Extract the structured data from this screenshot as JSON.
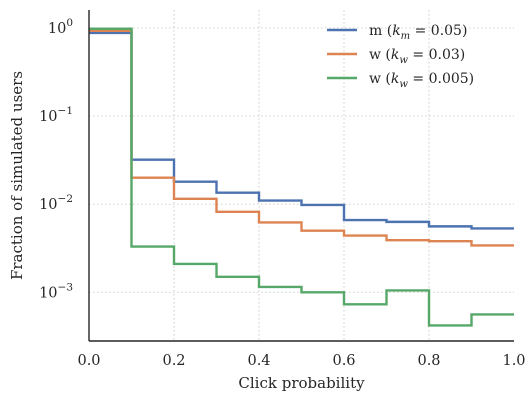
{
  "chart_data": {
    "type": "line",
    "step": "post",
    "xlabel": "Click probability",
    "ylabel": "Fraction of simulated users",
    "xlim": [
      0.0,
      1.0
    ],
    "ylim": [
      0.00028,
      1.6
    ],
    "yscale": "log",
    "grid": true,
    "legend_position": "top-right",
    "x_ticks": [
      0.0,
      0.2,
      0.4,
      0.6,
      0.8,
      1.0
    ],
    "x_tick_labels": [
      "0.0",
      "0.2",
      "0.4",
      "0.6",
      "0.8",
      "1.0"
    ],
    "y_ticks": [
      1,
      0.1,
      0.01,
      0.001
    ],
    "y_tick_labels": [
      {
        "base": "10",
        "exp": "0"
      },
      {
        "base": "10",
        "exp": "−1"
      },
      {
        "base": "10",
        "exp": "−2"
      },
      {
        "base": "10",
        "exp": "−3"
      }
    ],
    "bin_edges": [
      0.0,
      0.1,
      0.2,
      0.3,
      0.4,
      0.5,
      0.6,
      0.7,
      0.8,
      0.9,
      1.0
    ],
    "series": [
      {
        "name": "m (k_m = 0.05)",
        "legend": {
          "prefix": "m (",
          "italic": "k",
          "sub": "m",
          "suffix": " = 0.05)"
        },
        "color": "#4c72b0",
        "values": [
          0.88,
          0.032,
          0.018,
          0.0135,
          0.011,
          0.0098,
          0.0066,
          0.0063,
          0.0056,
          0.0053
        ]
      },
      {
        "name": "w (k_w = 0.03)",
        "legend": {
          "prefix": "w (",
          "italic": "k",
          "sub": "w",
          "suffix": " = 0.03)"
        },
        "color": "#dd8452",
        "values": [
          0.93,
          0.02,
          0.0115,
          0.0082,
          0.0062,
          0.005,
          0.0044,
          0.0039,
          0.0038,
          0.0034
        ]
      },
      {
        "name": "w (k_w = 0.005)",
        "legend": {
          "prefix": "w (",
          "italic": "k",
          "sub": "w",
          "suffix": " = 0.005)"
        },
        "color": "#55a868",
        "values": [
          0.98,
          0.0033,
          0.0021,
          0.0015,
          0.00115,
          0.001,
          0.00073,
          0.00105,
          0.00042,
          0.00056
        ]
      }
    ]
  }
}
